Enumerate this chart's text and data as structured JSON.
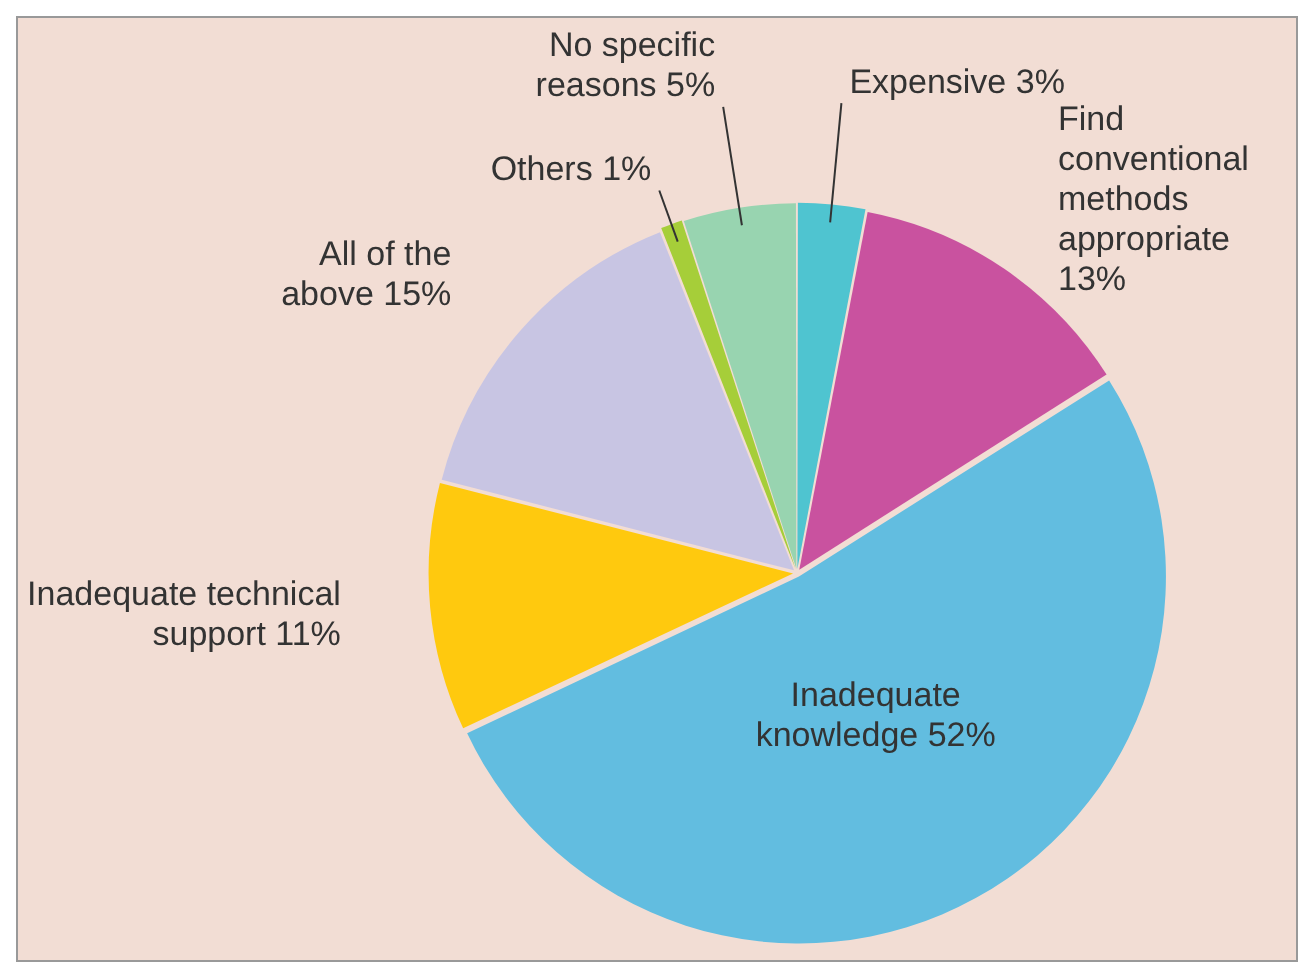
{
  "chart_data": {
    "type": "pie",
    "categories": [
      "Expensive",
      "Find conventional methods appropriate",
      "Inadequate knowledge",
      "Inadequate technical support",
      "All of the above",
      "Others",
      "No specific reasons"
    ],
    "values": [
      3,
      13,
      52,
      11,
      15,
      1,
      5
    ],
    "value_labels": [
      "3%",
      "13%",
      "52%",
      "11%",
      "15%",
      "1%",
      "5%"
    ],
    "colors": [
      "#4fc4d0",
      "#c9529f",
      "#62bde0",
      "#ffc90e",
      "#c8c5e3",
      "#a6ce39",
      "#98d4b0"
    ],
    "legend": false
  }
}
